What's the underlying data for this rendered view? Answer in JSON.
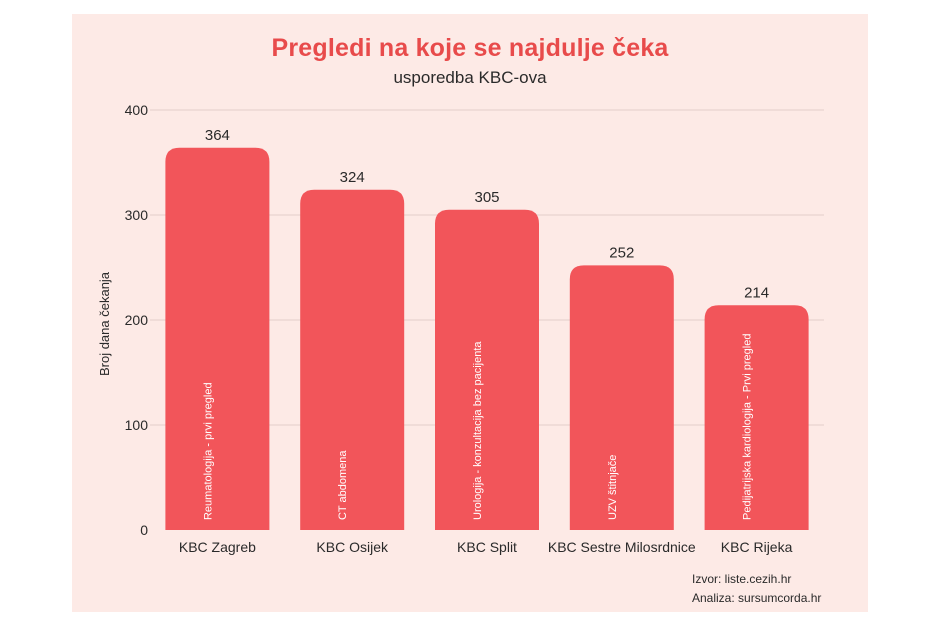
{
  "title": "Pregledi na koje se najdulje čeka",
  "subtitle": "usporedba KBC-ova",
  "source": {
    "izvor": "Izvor: liste.cezih.hr",
    "analiza": "Analiza: sursumcorda.hr"
  },
  "colors": {
    "background": "#fdeae6",
    "bar": "#f2555a",
    "title": "#e84b4b",
    "grid": "#e2cfcb"
  },
  "chart_data": {
    "type": "bar",
    "title": "Pregledi na koje se najdulje čeka",
    "subtitle": "usporedba KBC-ova",
    "xlabel": "",
    "ylabel": "Broj dana čekanja",
    "ylim": [
      0,
      400
    ],
    "yticks": [
      0,
      100,
      200,
      300,
      400
    ],
    "grid": true,
    "categories": [
      "KBC Zagreb",
      "KBC Osijek",
      "KBC Split",
      "KBC Sestre Milosrdnice",
      "KBC Rijeka"
    ],
    "values": [
      364,
      324,
      305,
      252,
      214
    ],
    "bar_labels": [
      "Reumatologija - prvi pregled",
      "CT abdomena",
      "Urologija - konzultacija bez pacijenta",
      "UZV štitnjače",
      "Pedijatrijska kardiologija - Prvi pregled"
    ]
  }
}
